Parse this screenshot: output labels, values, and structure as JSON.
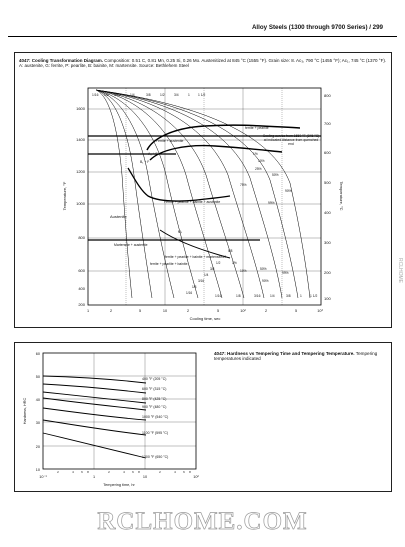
{
  "running_header": "Alloy Steels (1300 through 9700 Series) / 299",
  "figure1": {
    "label": "4047: Cooling Transformation Diagram.",
    "caption": "Composition: 0.51 C, 0.81 Mn, 0.25 Si, 0.26 Mo. Austenitized at 845 °C (1555 °F). Grain size: 8. Ac₃, 790 °C (1455 °F); Ac₁, 745 °C (1370 °F). A: austenite, G: ferrite, P: pearlite, B: bainite, M: martensite. Source: Bethlehem Steel",
    "y_left_label": "Temperature, °F",
    "y_right_label": "Temperature, °C",
    "x_label": "Cooling time, sec",
    "y_left_ticks": [
      "1600",
      "1400",
      "1200",
      "1000",
      "800",
      "600",
      "400",
      "200"
    ],
    "y_right_ticks": [
      "800",
      "700",
      "600",
      "500",
      "400",
      "300",
      "200",
      "100"
    ],
    "x_ticks": [
      "1",
      "2",
      "5",
      "10",
      "2",
      "5",
      "10²",
      "2",
      "5",
      "10³"
    ],
    "region_labels": {
      "ferrite_pearlite": "ferrite + pearlite",
      "ferrite_austenite": "Ferrite + austenite",
      "ferrite_pearlite_bainite_austenite": "Ferrite + pearlite + bainite + austenite",
      "austenite": "Austenite",
      "martensite_austenite": "Martensite + austenite",
      "fpbm": "ferrite + pearlite + bainite + martensite",
      "fpb": "ferrite + pearlite + bainite",
      "ms": "Mₛ",
      "af": "A₃ + F",
      "af2": "B₁ + F",
      "cooling_note": "Cooling curves from 1550 °F (845 °C) at indicated distance from quenched end"
    },
    "percent_labels": [
      "1%",
      "10%",
      "25%",
      "50%",
      "75%",
      "90%",
      "99%",
      "1%",
      "10%",
      "50%",
      "90%",
      "99%"
    ],
    "distance_labels_top": [
      "1/16",
      "1/8",
      "3/16",
      "1/4",
      "3/8",
      "1/2",
      "3/4",
      "1",
      "1 1/2"
    ],
    "distance_labels_bottom": [
      "1/16",
      "1/8",
      "3/16",
      "1/4",
      "3/8",
      "1",
      "1 1/2"
    ],
    "distance_labels_mid": [
      "5/8",
      "3/4",
      "1/2",
      "3/8",
      "1/4",
      "3/16",
      "1/8",
      "1/16"
    ]
  },
  "figure2": {
    "label": "4047: Hardness vs Tempering Time and Tempering Temperature.",
    "caption": "Tempering temperatures indicated",
    "y_label": "Hardness, HRC",
    "x_label": "Tempering time, hr",
    "y_ticks": [
      "60",
      "50",
      "40",
      "30",
      "20",
      "10"
    ],
    "x_ticks": [
      "10⁻¹",
      "1",
      "10",
      "10²"
    ],
    "x_minor_ticks": [
      "2",
      "4",
      "6",
      "8",
      "2",
      "4",
      "6",
      "8",
      "2",
      "4",
      "6",
      "8"
    ],
    "curve_labels": [
      "400 °F (205 °C)",
      "600 °F (315 °C)",
      "800 °F (425 °C)",
      "900 °F (480 °C)",
      "1000 °F (540 °C)",
      "1100 °F (595 °C)",
      "1200 °F (650 °C)"
    ]
  },
  "watermark": "RCLHOME.COM",
  "side_mark": "RCLHOME"
}
